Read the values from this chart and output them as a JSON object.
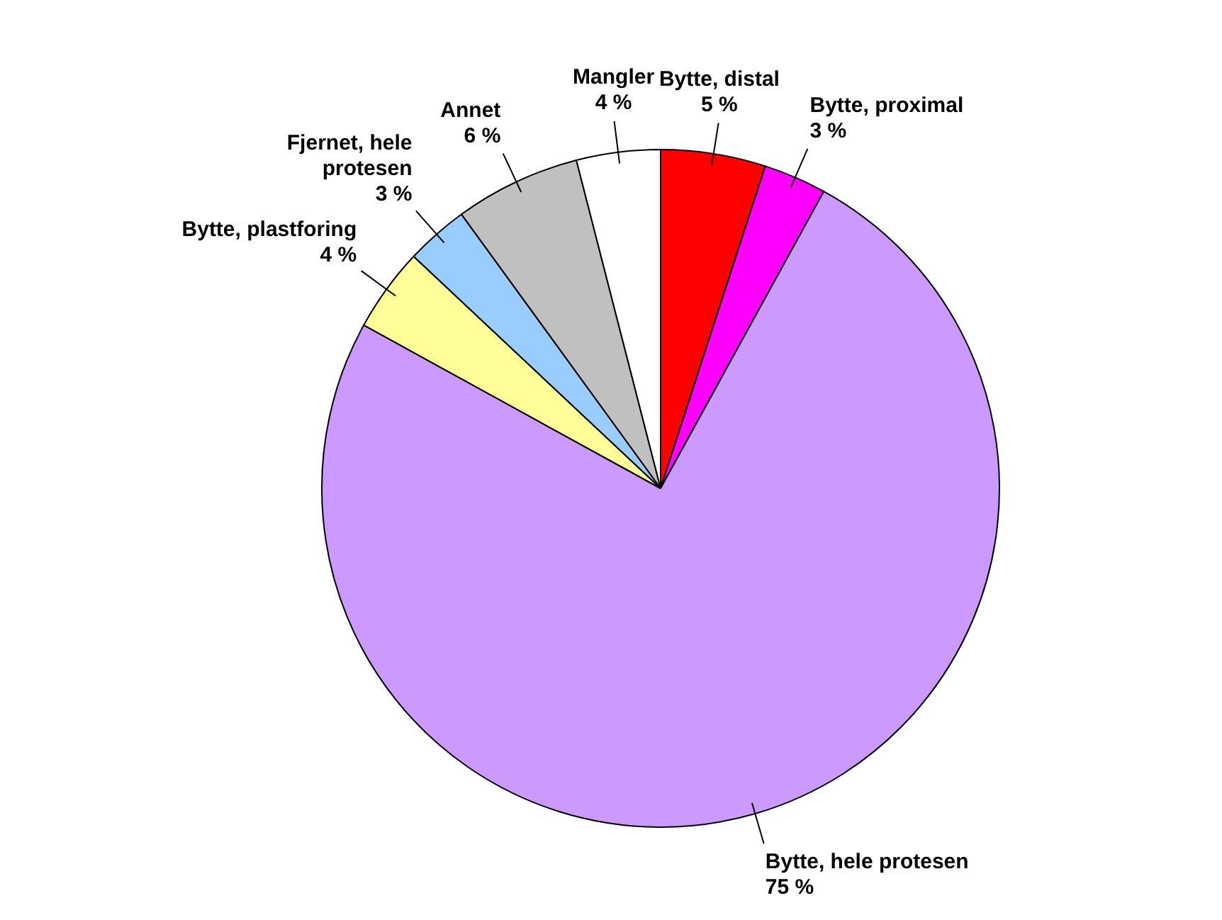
{
  "chart_data": {
    "type": "pie",
    "categories": [
      "Bytte, distal",
      "Bytte, proximal",
      "Bytte, hele protesen",
      "Bytte, plastforing",
      "Fjernet, hele protesen",
      "Annet",
      "Mangler"
    ],
    "values": [
      5,
      3,
      75,
      4,
      3,
      6,
      4
    ],
    "value_labels": [
      "5 %",
      "3 %",
      "75 %",
      "4 %",
      "3 %",
      "6 %",
      "4 %"
    ],
    "colors": [
      "#ff0000",
      "#ff00ff",
      "#cc99ff",
      "#ffff99",
      "#99ccff",
      "#c0c0c0",
      "#ffffff"
    ],
    "legend": false
  }
}
